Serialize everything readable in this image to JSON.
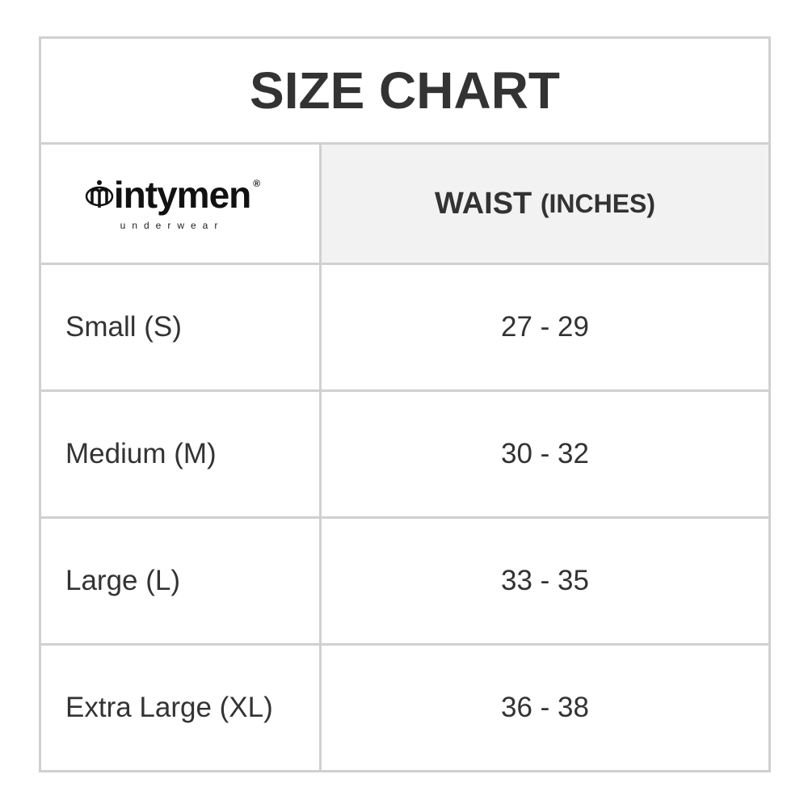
{
  "title": "SIZE CHART",
  "logo": {
    "brand": "intymen",
    "tagline": "underwear",
    "mark": "®"
  },
  "header": {
    "col2_main": "WAIST ",
    "col2_unit": "(INCHES)"
  },
  "rows": [
    {
      "size": "Small (S)",
      "waist": "27 - 29"
    },
    {
      "size": "Medium (M)",
      "waist": "30 - 32"
    },
    {
      "size": "Large (L)",
      "waist": "33 - 35"
    },
    {
      "size": "Extra Large (XL)",
      "waist": "36 - 38"
    }
  ]
}
